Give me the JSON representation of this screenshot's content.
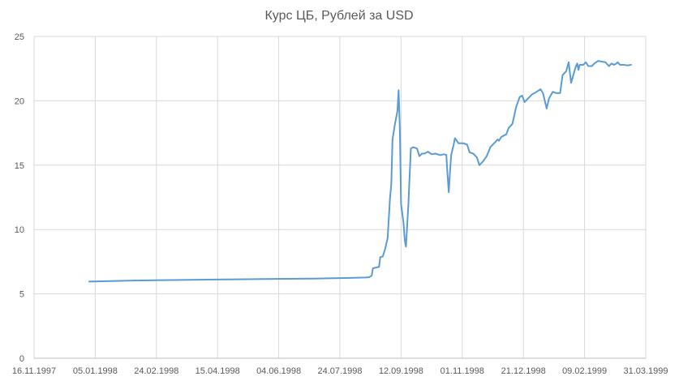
{
  "chart_data": {
    "type": "line",
    "title": "Курс ЦБ, Рублей за USD",
    "xlabel": "",
    "ylabel": "",
    "x_axis": {
      "type": "date",
      "format": "DD.MM.YYYY",
      "range": [
        "1997-11-16",
        "1999-03-31"
      ],
      "ticks": [
        "1997-11-16",
        "1998-01-05",
        "1998-02-24",
        "1998-04-15",
        "1998-06-04",
        "1998-07-24",
        "1998-09-12",
        "1998-11-01",
        "1998-12-21",
        "1999-02-09",
        "1999-03-31"
      ],
      "tick_labels": [
        "16.11.1997",
        "05.01.1998",
        "24.02.1998",
        "15.04.1998",
        "04.06.1998",
        "24.07.1998",
        "12.09.1998",
        "01.11.1998",
        "21.12.1998",
        "09.02.1999",
        "31.03.1999"
      ]
    },
    "y_axis": {
      "range": [
        0,
        25
      ],
      "ticks": [
        0,
        5,
        10,
        15,
        20,
        25
      ],
      "tick_labels": [
        "0",
        "5",
        "10",
        "15",
        "20",
        "25"
      ]
    },
    "grid": {
      "vertical": true,
      "horizontal": true
    },
    "legend": "none",
    "series": [
      {
        "color": "#5b9bd5",
        "points": [
          [
            "1997-12-31",
            5.96
          ],
          [
            "1998-01-15",
            5.99
          ],
          [
            "1998-02-01",
            6.03
          ],
          [
            "1998-03-01",
            6.07
          ],
          [
            "1998-04-01",
            6.1
          ],
          [
            "1998-05-01",
            6.13
          ],
          [
            "1998-06-01",
            6.16
          ],
          [
            "1998-07-01",
            6.19
          ],
          [
            "1998-08-01",
            6.24
          ],
          [
            "1998-08-14",
            6.27
          ],
          [
            "1998-08-17",
            6.3
          ],
          [
            "1998-08-19",
            6.43
          ],
          [
            "1998-08-20",
            6.99
          ],
          [
            "1998-08-25",
            7.1
          ],
          [
            "1998-08-26",
            7.86
          ],
          [
            "1998-08-28",
            7.9
          ],
          [
            "1998-08-30",
            8.5
          ],
          [
            "1998-09-01",
            9.33
          ],
          [
            "1998-09-03",
            12.5
          ],
          [
            "1998-09-04",
            13.5
          ],
          [
            "1998-09-05",
            17.0
          ],
          [
            "1998-09-07",
            18.2
          ],
          [
            "1998-09-09",
            19.2
          ],
          [
            "1998-09-10",
            20.83
          ],
          [
            "1998-09-11",
            17.8
          ],
          [
            "1998-09-12",
            12.0
          ],
          [
            "1998-09-14",
            10.5
          ],
          [
            "1998-09-15",
            9.2
          ],
          [
            "1998-09-16",
            8.67
          ],
          [
            "1998-09-18",
            12.0
          ],
          [
            "1998-09-20",
            16.3
          ],
          [
            "1998-09-22",
            16.4
          ],
          [
            "1998-09-25",
            16.3
          ],
          [
            "1998-09-27",
            15.7
          ],
          [
            "1998-09-29",
            15.9
          ],
          [
            "1998-10-01",
            15.9
          ],
          [
            "1998-10-04",
            16.05
          ],
          [
            "1998-10-07",
            15.85
          ],
          [
            "1998-10-10",
            15.9
          ],
          [
            "1998-10-14",
            15.78
          ],
          [
            "1998-10-17",
            15.85
          ],
          [
            "1998-10-19",
            15.8
          ],
          [
            "1998-10-20",
            14.2
          ],
          [
            "1998-10-21",
            12.9
          ],
          [
            "1998-10-22",
            14.5
          ],
          [
            "1998-10-23",
            15.8
          ],
          [
            "1998-10-25",
            16.6
          ],
          [
            "1998-10-26",
            17.1
          ],
          [
            "1998-10-29",
            16.7
          ],
          [
            "1998-11-02",
            16.7
          ],
          [
            "1998-11-05",
            16.6
          ],
          [
            "1998-11-07",
            16.0
          ],
          [
            "1998-11-10",
            15.9
          ],
          [
            "1998-11-13",
            15.6
          ],
          [
            "1998-11-15",
            15.0
          ],
          [
            "1998-11-18",
            15.3
          ],
          [
            "1998-11-21",
            15.7
          ],
          [
            "1998-11-24",
            16.4
          ],
          [
            "1998-11-27",
            16.7
          ],
          [
            "1998-11-30",
            17.0
          ],
          [
            "1998-12-01",
            16.9
          ],
          [
            "1998-12-03",
            17.2
          ],
          [
            "1998-12-07",
            17.4
          ],
          [
            "1998-12-09",
            17.9
          ],
          [
            "1998-12-12",
            18.2
          ],
          [
            "1998-12-15",
            19.5
          ],
          [
            "1998-12-18",
            20.3
          ],
          [
            "1998-12-20",
            20.4
          ],
          [
            "1998-12-22",
            19.9
          ],
          [
            "1998-12-25",
            20.2
          ],
          [
            "1998-12-28",
            20.5
          ],
          [
            "1998-12-31",
            20.65
          ],
          [
            "1999-01-04",
            20.9
          ],
          [
            "1999-01-06",
            20.6
          ],
          [
            "1999-01-09",
            19.4
          ],
          [
            "1999-01-11",
            20.2
          ],
          [
            "1999-01-14",
            20.7
          ],
          [
            "1999-01-17",
            20.6
          ],
          [
            "1999-01-20",
            20.6
          ],
          [
            "1999-01-22",
            22.0
          ],
          [
            "1999-01-25",
            22.3
          ],
          [
            "1999-01-27",
            23.0
          ],
          [
            "1999-01-28",
            22.2
          ],
          [
            "1999-01-29",
            21.4
          ],
          [
            "1999-02-01",
            22.4
          ],
          [
            "1999-02-02",
            22.7
          ],
          [
            "1999-02-03",
            22.9
          ],
          [
            "1999-02-04",
            22.4
          ],
          [
            "1999-02-05",
            22.8
          ],
          [
            "1999-02-08",
            22.8
          ],
          [
            "1999-02-10",
            23.0
          ],
          [
            "1999-02-12",
            22.7
          ],
          [
            "1999-02-15",
            22.7
          ],
          [
            "1999-02-17",
            22.9
          ],
          [
            "1999-02-20",
            23.1
          ],
          [
            "1999-02-23",
            23.05
          ],
          [
            "1999-02-26",
            23.0
          ],
          [
            "1999-03-01",
            22.7
          ],
          [
            "1999-03-03",
            22.9
          ],
          [
            "1999-03-05",
            22.8
          ],
          [
            "1999-03-07",
            22.9
          ],
          [
            "1999-03-08",
            23.0
          ],
          [
            "1999-03-10",
            22.8
          ],
          [
            "1999-03-13",
            22.8
          ],
          [
            "1999-03-16",
            22.75
          ],
          [
            "1999-03-19",
            22.8
          ]
        ]
      }
    ]
  }
}
